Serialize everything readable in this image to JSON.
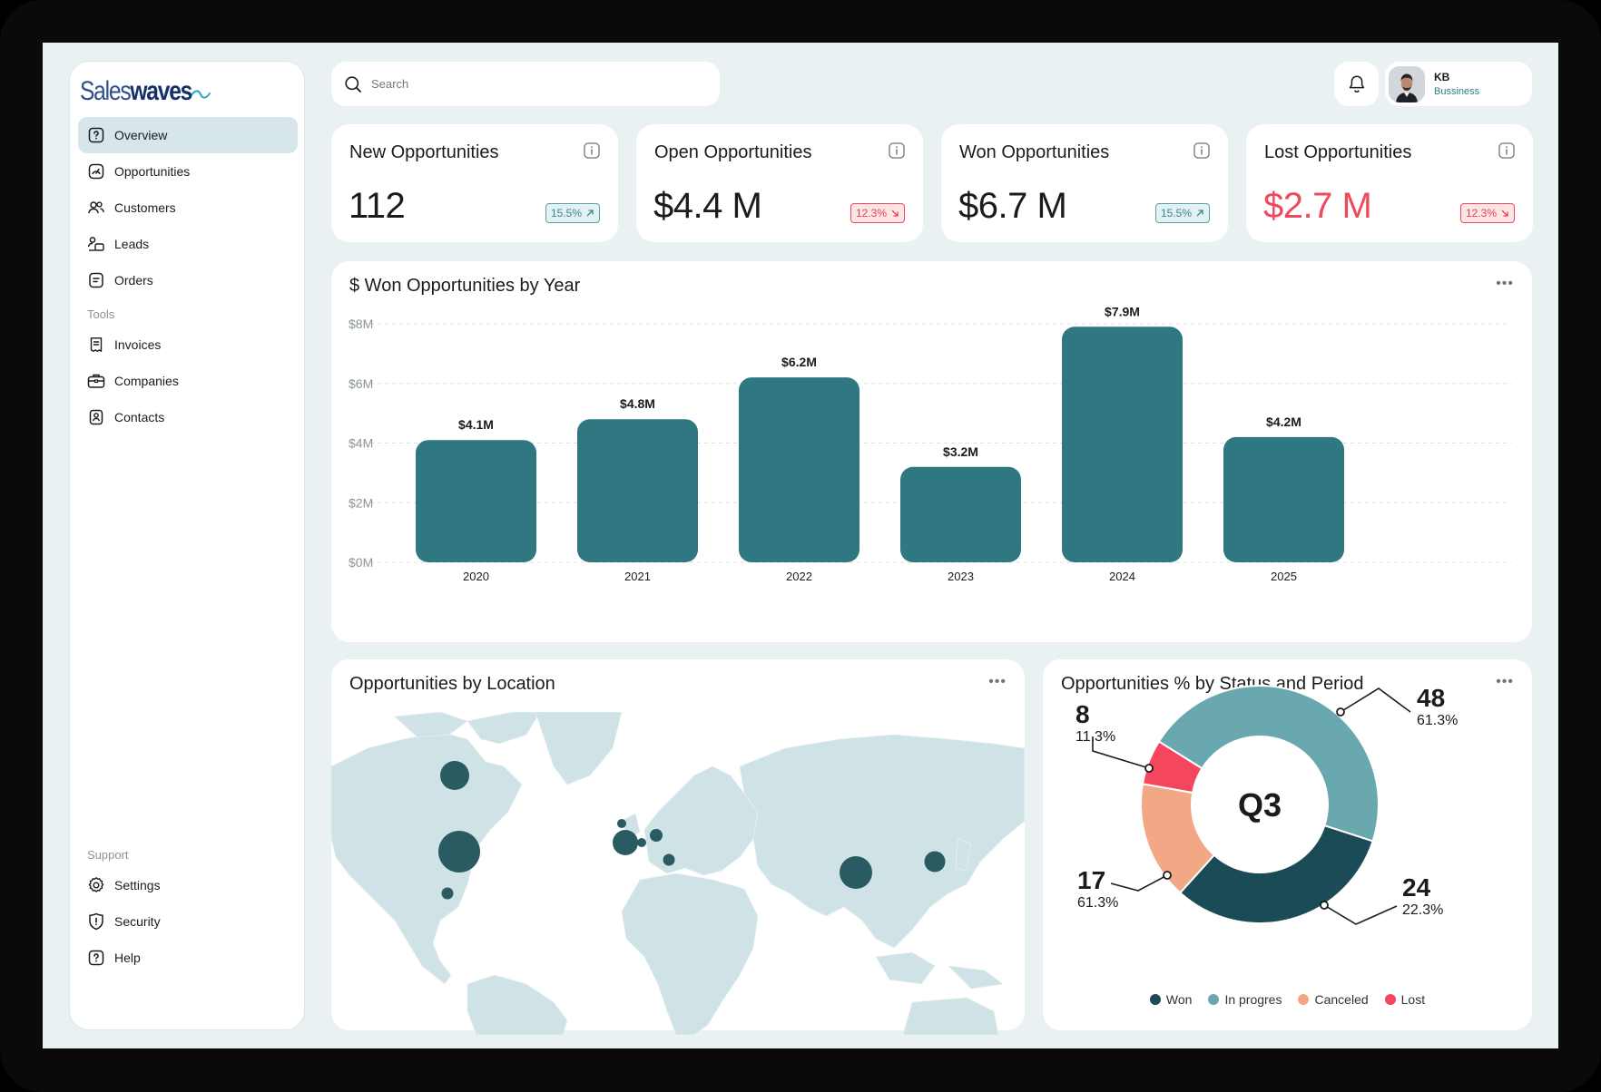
{
  "brand": {
    "name_light": "Sales",
    "name_bold": "waves"
  },
  "search": {
    "placeholder": "Search"
  },
  "user": {
    "initials": "KB",
    "role": "Bussiness"
  },
  "sidebar": {
    "main": [
      {
        "label": "Overview",
        "icon": "question-square-icon",
        "active": true
      },
      {
        "label": "Opportunities",
        "icon": "gauge-icon"
      },
      {
        "label": "Customers",
        "icon": "users-icon"
      },
      {
        "label": "Leads",
        "icon": "leads-icon"
      },
      {
        "label": "Orders",
        "icon": "orders-icon"
      }
    ],
    "tools_heading": "Tools",
    "tools": [
      {
        "label": "Invoices",
        "icon": "receipt-icon"
      },
      {
        "label": "Companies",
        "icon": "briefcase-icon"
      },
      {
        "label": "Contacts",
        "icon": "contact-book-icon"
      }
    ],
    "support_heading": "Support",
    "support": [
      {
        "label": "Settings",
        "icon": "gear-icon"
      },
      {
        "label": "Security",
        "icon": "shield-icon"
      },
      {
        "label": "Help",
        "icon": "help-icon"
      }
    ]
  },
  "kpis": [
    {
      "title": "New Opportunities",
      "value": "112",
      "delta": "15.5%",
      "trend": "up"
    },
    {
      "title": "Open Opportunities",
      "value": "$4.4 M",
      "delta": "12.3%",
      "trend": "down"
    },
    {
      "title": "Won Opportunities",
      "value": "$6.7 M",
      "delta": "15.5%",
      "trend": "up"
    },
    {
      "title": "Lost Opportunities",
      "value": "$2.7 M",
      "delta": "12.3%",
      "trend": "down",
      "value_color": "#ee4a5d"
    }
  ],
  "colors": {
    "teal_dark": "#2f7781",
    "won": "#1b4b56",
    "in_progress": "#6aa8b0",
    "canceled": "#f2a885",
    "lost": "#f4475e",
    "map_land": "#cfe2e6",
    "map_bubble": "#2b5b62"
  },
  "bar_card": {
    "title": "$ Won Opportunities by Year"
  },
  "map_card": {
    "title": "Opportunities by Location"
  },
  "donut_card": {
    "title": "Opportunities % by Status and Period",
    "center": "Q3"
  },
  "chart_data": [
    {
      "type": "bar",
      "title": "$ Won Opportunities by Year",
      "categories": [
        "2020",
        "2021",
        "2022",
        "2023",
        "2024",
        "2025"
      ],
      "values": [
        4.1,
        4.8,
        6.2,
        3.2,
        7.9,
        4.2
      ],
      "value_labels": [
        "$4.1M",
        "$4.8M",
        "$6.2M",
        "$3.2M",
        "$7.9M",
        "$4.2M"
      ],
      "y_ticks": [
        "$0M",
        "$2M",
        "$4M",
        "$6M",
        "$8M"
      ],
      "ylim": [
        0,
        8
      ],
      "grid": true
    },
    {
      "type": "pie",
      "title": "Opportunities % by Status and Period",
      "center_label": "Q3",
      "series": [
        {
          "name": "Won",
          "color": "#1b4b56"
        },
        {
          "name": "In progres",
          "count": "24",
          "percent": "22.3%",
          "color": "#6aa8b0"
        },
        {
          "name": "Canceled",
          "color": "#f2a885"
        },
        {
          "name": "Lost",
          "color": "#f4475e"
        }
      ],
      "callouts": [
        {
          "count": "48",
          "percent": "61.3%"
        },
        {
          "count": "8",
          "percent": "11.3%"
        },
        {
          "count": "17",
          "percent": "61.3%"
        },
        {
          "count": "24",
          "percent": "22.3%"
        }
      ],
      "legend": [
        "Won",
        "In progres",
        "Canceled",
        "Lost"
      ]
    }
  ]
}
